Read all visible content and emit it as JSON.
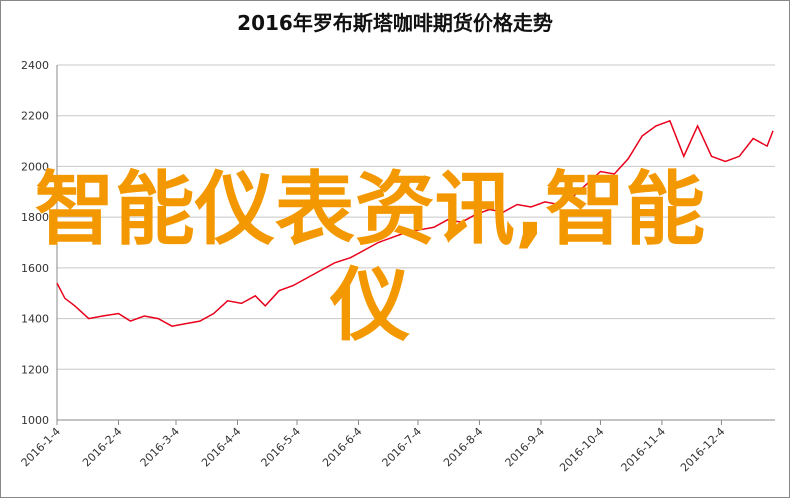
{
  "chart_data": {
    "type": "line",
    "title": "2016年罗布斯塔咖啡期货价格走势",
    "annotation": "智能仪表资讯,智能仪",
    "x": [
      "2016-1-4",
      "2016-1-8",
      "2016-1-13",
      "2016-1-20",
      "2016-1-27",
      "2016-2-4",
      "2016-2-10",
      "2016-2-17",
      "2016-2-24",
      "2016-3-2",
      "2016-3-9",
      "2016-3-16",
      "2016-3-23",
      "2016-3-30",
      "2016-4-6",
      "2016-4-13",
      "2016-4-18",
      "2016-4-25",
      "2016-5-2",
      "2016-5-9",
      "2016-5-16",
      "2016-5-23",
      "2016-5-31",
      "2016-6-7",
      "2016-6-14",
      "2016-6-21",
      "2016-6-28",
      "2016-7-5",
      "2016-7-12",
      "2016-7-19",
      "2016-7-26",
      "2016-8-2",
      "2016-8-9",
      "2016-8-16",
      "2016-8-23",
      "2016-8-30",
      "2016-9-6",
      "2016-9-13",
      "2016-9-20",
      "2016-9-27",
      "2016-10-4",
      "2016-10-11",
      "2016-10-18",
      "2016-10-25",
      "2016-11-1",
      "2016-11-8",
      "2016-11-15",
      "2016-11-22",
      "2016-11-29",
      "2016-12-6",
      "2016-12-13",
      "2016-12-20",
      "2016-12-27",
      "2016-12-30"
    ],
    "series": [
      {
        "color": "#e8001c",
        "values": [
          1540,
          1480,
          1450,
          1400,
          1410,
          1420,
          1390,
          1410,
          1400,
          1370,
          1380,
          1390,
          1420,
          1470,
          1460,
          1490,
          1450,
          1510,
          1530,
          1560,
          1590,
          1620,
          1640,
          1670,
          1700,
          1720,
          1740,
          1750,
          1760,
          1790,
          1780,
          1810,
          1830,
          1820,
          1850,
          1840,
          1860,
          1850,
          1880,
          1930,
          1980,
          1970,
          2030,
          2120,
          2160,
          2180,
          2040,
          2160,
          2040,
          2020,
          2040,
          2110,
          2080,
          2140
        ]
      }
    ],
    "xlim": [
      "2016-1-4",
      "2016-12-31"
    ],
    "xticks": [
      "2016-1-4",
      "2016-2-4",
      "2016-3-4",
      "2016-4-4",
      "2016-5-4",
      "2016-6-4",
      "2016-7-4",
      "2016-8-4",
      "2016-9-4",
      "2016-10-4",
      "2016-11-4",
      "2016-12-4"
    ],
    "ylim": [
      1000,
      2400
    ],
    "yticks": [
      1000,
      1200,
      1400,
      1600,
      1800,
      2000,
      2200,
      2400
    ],
    "grid": true
  }
}
